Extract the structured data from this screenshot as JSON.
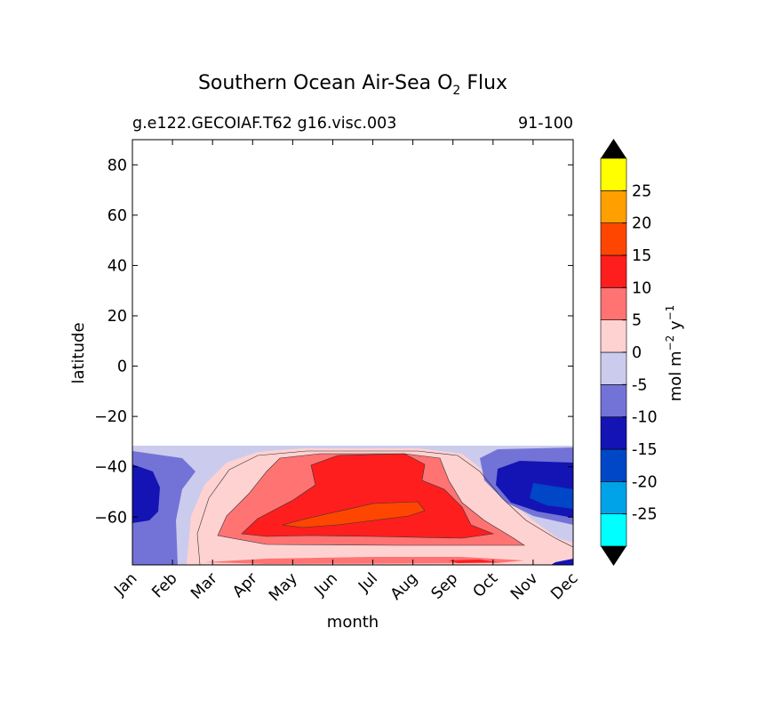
{
  "chart_data": {
    "type": "contourf",
    "title": "Southern Ocean Air-Sea O",
    "title_subscript": "2",
    "title_suffix": "Flux",
    "subtitle_left": "g.e122.GECOIAF.T62 g16.visc.003",
    "subtitle_right": "91-100",
    "xlabel": "month",
    "ylabel": "latitude",
    "x_tick_labels": [
      "Jan",
      "Feb",
      "Mar",
      "Apr",
      "May",
      "Jun",
      "Jul",
      "Aug",
      "Sep",
      "Oct",
      "Nov",
      "Dec"
    ],
    "y_ticks": [
      80,
      60,
      40,
      20,
      0,
      -20,
      -40,
      -60
    ],
    "y_tick_labels": [
      "80",
      "60",
      "40",
      "20",
      "0",
      "−20",
      "−40",
      "−60"
    ],
    "ylim": [
      -79,
      90
    ],
    "data_north_limit": -31,
    "colorbar": {
      "label_main": "mol m",
      "label_exp1": "−2",
      "label_mid": " y",
      "label_exp2": "−1",
      "tick_labels": [
        "25",
        "20",
        "15",
        "10",
        "5",
        "0",
        "-5",
        "-10",
        "-15",
        "-20",
        "-25"
      ],
      "levels": [
        -30,
        -25,
        -20,
        -15,
        -10,
        -5,
        0,
        5,
        10,
        15,
        20,
        25,
        30
      ],
      "colors": [
        "#00ffff",
        "#00a2e8",
        "#0047c8",
        "#1414b4",
        "#7373d7",
        "#cbcbed",
        "#ffd2d2",
        "#ff7373",
        "#ff1e1e",
        "#ff4600",
        "#ffa000",
        "#ffff00"
      ],
      "extend_color": "#000000"
    },
    "regions_approx": [
      {
        "month": "Jul",
        "lat": -45,
        "value": 12.5
      },
      {
        "month": "Jul",
        "lat": -58,
        "value": 17.5
      },
      {
        "month": "Jan",
        "lat": -55,
        "value": -12.5
      },
      {
        "month": "Nov",
        "lat": -48,
        "value": -12.5
      },
      {
        "month": "Dec",
        "lat": -57,
        "value": -17.5
      },
      {
        "month": "Mar",
        "lat": -55,
        "value": 2.5
      }
    ]
  }
}
